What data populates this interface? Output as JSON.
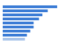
{
  "chart_data": {
    "type": "bar",
    "orientation": "horizontal",
    "categories": [
      null,
      null,
      null,
      null,
      null,
      null,
      null,
      null,
      null
    ],
    "values": [
      81,
      67,
      59,
      54,
      46,
      46,
      41,
      36,
      33
    ],
    "colors": [
      "#3a7bd5",
      "#3a7bd5",
      "#3a7bd5",
      "#3a7bd5",
      "#3a7bd5",
      "#3a7bd5",
      "#3a7bd5",
      "#3a7bd5",
      "#a9c4ea"
    ],
    "xlim": [
      0,
      85
    ],
    "grid": false,
    "tick_labels": false
  }
}
